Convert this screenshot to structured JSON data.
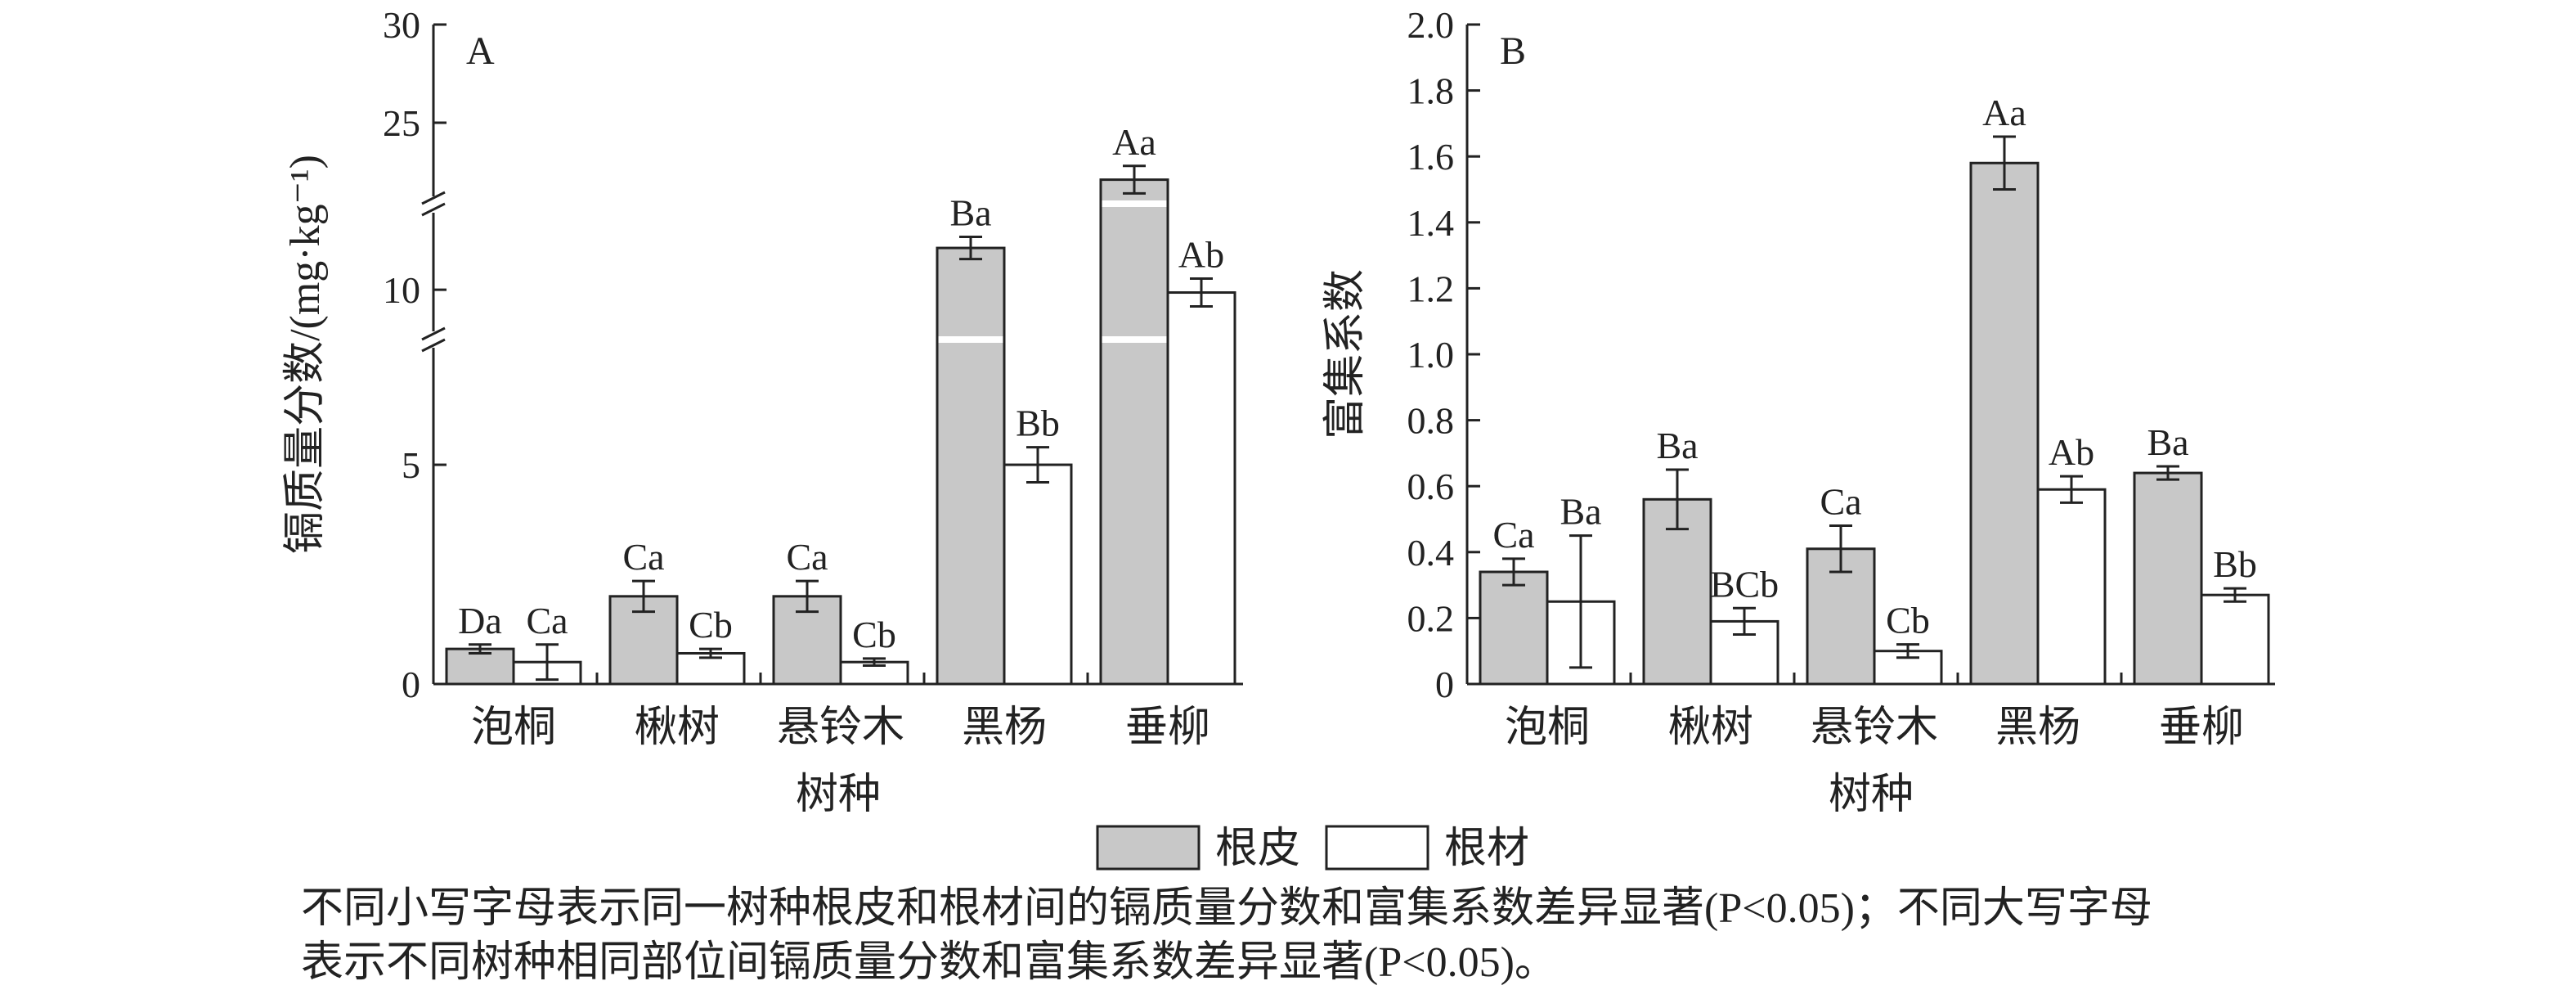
{
  "chart_data": [
    {
      "type": "bar",
      "panel_label": "A",
      "ylabel": "镉质量分数/(mg·kg⁻¹)",
      "xlabel": "树种",
      "categories": [
        "泡桐",
        "楸树",
        "悬铃木",
        "黑杨",
        "垂柳"
      ],
      "axis_break": true,
      "y_segments": [
        {
          "range": [
            0,
            7.8
          ],
          "ticks": [
            0,
            5
          ]
        },
        {
          "range": [
            8.3,
            13
          ],
          "ticks": [
            10
          ]
        },
        {
          "range": [
            21,
            30
          ],
          "ticks": [
            25,
            30
          ]
        }
      ],
      "ylim": [
        0,
        30
      ],
      "grid": false,
      "series": [
        {
          "name": "根皮",
          "color": "#c8c8c8",
          "values": [
            0.8,
            2.0,
            2.0,
            11.5,
            22.1
          ],
          "errors": [
            0.1,
            0.35,
            0.35,
            0.4,
            0.7
          ],
          "labels": [
            "Da",
            "Ca",
            "Ca",
            "Ba",
            "Aa"
          ]
        },
        {
          "name": "根材",
          "color": "#ffffff",
          "values": [
            0.5,
            0.7,
            0.5,
            5.0,
            9.9
          ],
          "errors": [
            0.4,
            0.1,
            0.08,
            0.4,
            0.5
          ],
          "labels": [
            "Ca",
            "Cb",
            "Cb",
            "Bb",
            "Ab"
          ]
        }
      ]
    },
    {
      "type": "bar",
      "panel_label": "B",
      "ylabel": "富集系数",
      "xlabel": "树种",
      "categories": [
        "泡桐",
        "楸树",
        "悬铃木",
        "黑杨",
        "垂柳"
      ],
      "ylim": [
        0,
        2.0
      ],
      "yticks": [
        "0",
        "0.2",
        "0.4",
        "0.6",
        "0.8",
        "1.0",
        "1.2",
        "1.4",
        "1.6",
        "1.8",
        "2.0"
      ],
      "grid": false,
      "series": [
        {
          "name": "根皮",
          "color": "#c8c8c8",
          "values": [
            0.34,
            0.56,
            0.41,
            1.58,
            0.64
          ],
          "errors": [
            0.04,
            0.09,
            0.07,
            0.08,
            0.02
          ],
          "labels": [
            "Ca",
            "Ba",
            "Ca",
            "Aa",
            "Ba"
          ]
        },
        {
          "name": "根材",
          "color": "#ffffff",
          "values": [
            0.25,
            0.19,
            0.1,
            0.59,
            0.27
          ],
          "errors": [
            0.2,
            0.04,
            0.02,
            0.04,
            0.02
          ],
          "labels": [
            "Ba",
            "BCb",
            "Cb",
            "Ab",
            "Bb"
          ]
        }
      ]
    }
  ],
  "legend": {
    "items": [
      "根皮",
      "根材"
    ],
    "position": "bottom-center"
  },
  "caption": {
    "line1": "不同小写字母表示同一树种根皮和根材间的镉质量分数和富集系数差异显著(P<0.05)；不同大写字母",
    "line2": "表示不同树种相同部位间镉质量分数和富集系数差异显著(P<0.05)。"
  }
}
